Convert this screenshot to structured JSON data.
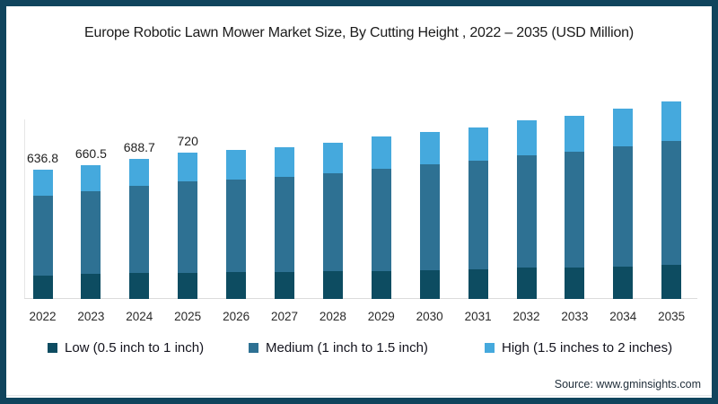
{
  "title": "Europe Robotic Lawn Mower Market Size, By Cutting Height , 2022 – 2035 (USD Million)",
  "source": "Source: www.gminsights.com",
  "frame_color": "#10445d",
  "chart_data": {
    "type": "bar",
    "stacked": true,
    "title": "Europe Robotic Lawn Mower Market Size, By Cutting Height , 2022 – 2035 (USD Million)",
    "unit": "USD Million",
    "categories": [
      "2022",
      "2023",
      "2024",
      "2025",
      "2026",
      "2027",
      "2028",
      "2029",
      "2030",
      "2031",
      "2032",
      "2033",
      "2034",
      "2035"
    ],
    "series": [
      {
        "name": "Low (0.5 inch to 1 inch)",
        "color": "#0d4c61",
        "values": [
          115,
          122,
          128,
          130,
          131,
          133,
          135,
          137,
          140,
          148,
          153,
          156,
          161,
          168
        ]
      },
      {
        "name": "Medium (1 inch to 1.5 inch)",
        "color": "#2e7193",
        "values": [
          394,
          409,
          427,
          450,
          455,
          468,
          483,
          502,
          520,
          534,
          552,
          572,
          593,
          610
        ]
      },
      {
        "name": "High (1.5 inches to 2 inches)",
        "color": "#45a9dd",
        "values": [
          128,
          130,
          134,
          140,
          144,
          146,
          152,
          158,
          161,
          165,
          173,
          178,
          186,
          195
        ]
      }
    ],
    "totals": [
      636.8,
      660.5,
      688.7,
      720,
      730,
      747,
      770,
      797,
      821,
      847,
      878,
      906,
      940,
      973
    ],
    "visible_total_labels": [
      "636.8",
      "660.5",
      "688.7",
      "720",
      "",
      "",
      "",
      "",
      "",
      "",
      "",
      "",
      "",
      ""
    ],
    "xlabel": "",
    "ylabel": "",
    "ylim": [
      0,
      1000
    ],
    "grid": false,
    "legend_position": "bottom",
    "axis_color": "#dcdcdc",
    "label_color": "#222222"
  }
}
